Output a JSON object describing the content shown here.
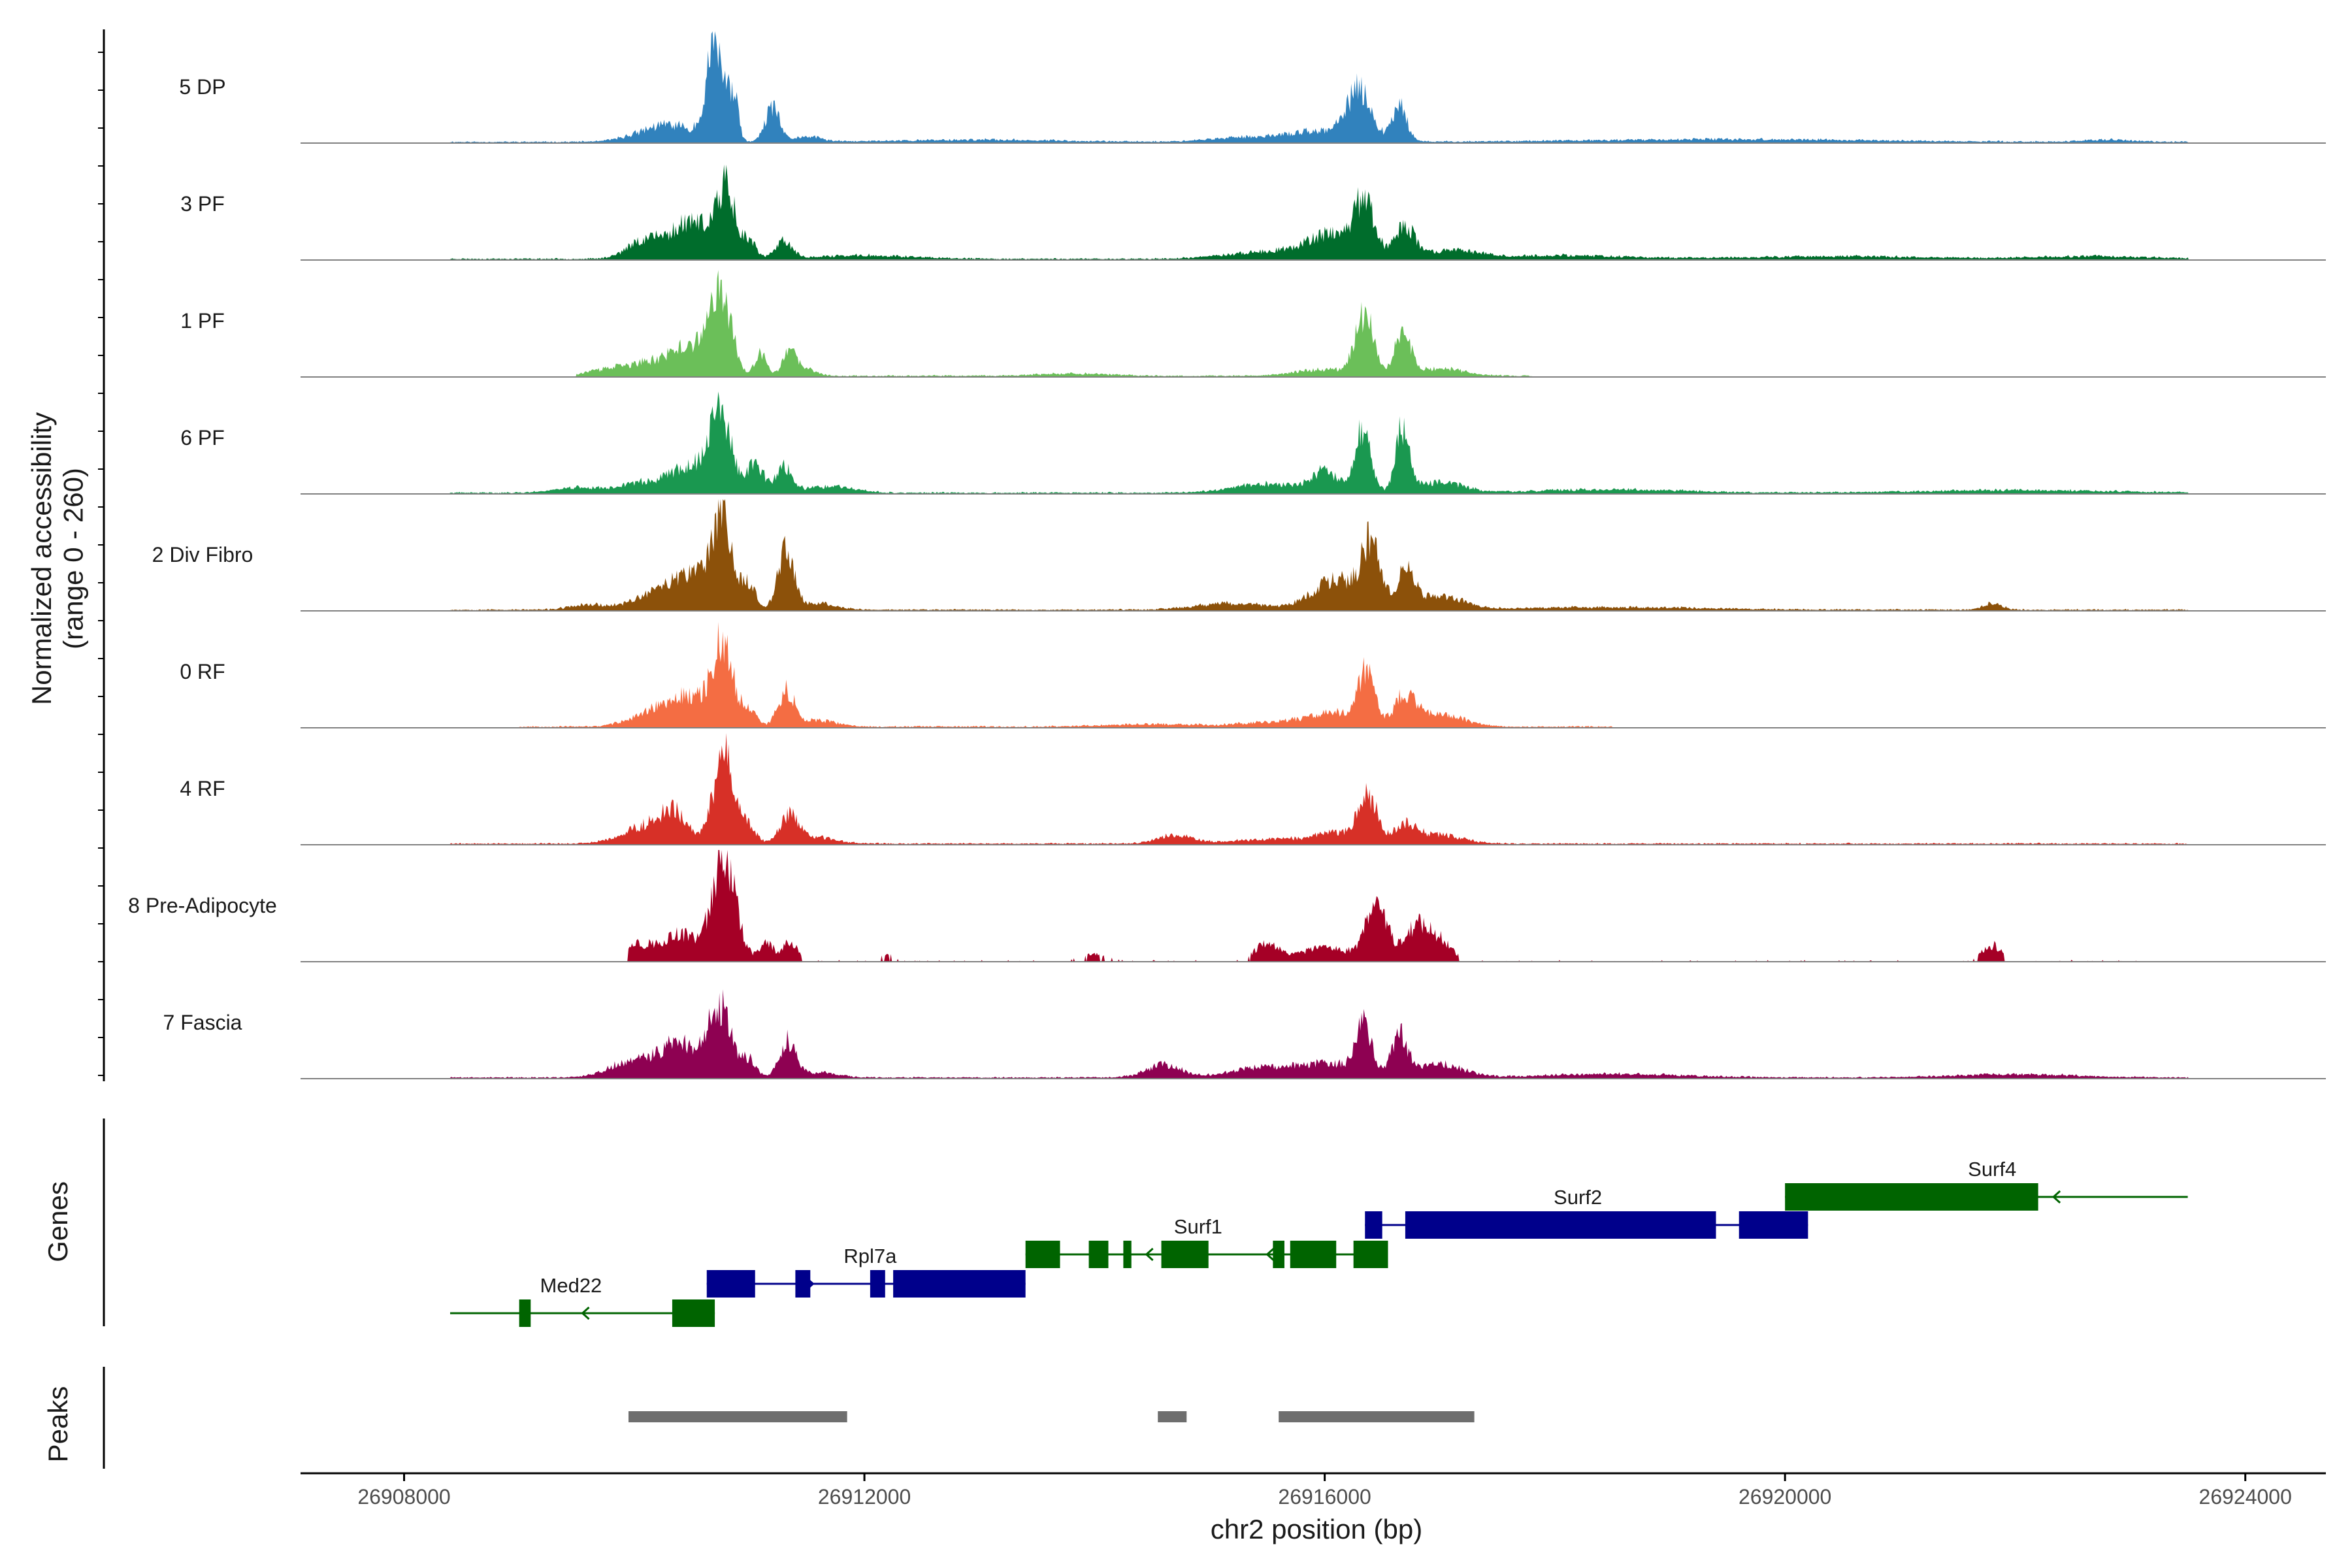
{
  "chart_data": {
    "type": "area",
    "title": "",
    "ylabel": "Normalized accessibility\n(range 0 - 260)",
    "ylim": [
      0,
      260
    ],
    "xlabel": "chr2 position (bp)",
    "xlim": [
      26907100,
      26924700
    ],
    "xticks": [
      26908000,
      26912000,
      26916000,
      26920000,
      26924000
    ],
    "xtick_labels": [
      "26908000",
      "26912000",
      "26916000",
      "26920000",
      "26924000"
    ],
    "tracks": [
      {
        "name": "5 DP",
        "color": "#3182BD",
        "peaks": [
          [
            26910300,
            40,
            250
          ],
          [
            26910700,
            230,
            70
          ],
          [
            26910860,
            110,
            40
          ],
          [
            26911200,
            80,
            60
          ],
          [
            26911500,
            12,
            120
          ],
          [
            26916300,
            110,
            100
          ],
          [
            26916650,
            90,
            60
          ],
          [
            26916000,
            25,
            300
          ],
          [
            26915300,
            10,
            300
          ],
          [
            26913000,
            5,
            700
          ],
          [
            26919500,
            6,
            1200
          ],
          [
            26922800,
            5,
            200
          ]
        ],
        "range": [
          26908400,
          26923500
        ],
        "seed": 11
      },
      {
        "name": "3 PF",
        "color": "#006D2C",
        "peaks": [
          [
            26910100,
            45,
            150
          ],
          [
            26910500,
            90,
            160
          ],
          [
            26910800,
            160,
            80
          ],
          [
            26911000,
            40,
            60
          ],
          [
            26911300,
            40,
            70
          ],
          [
            26912000,
            8,
            400
          ],
          [
            26916100,
            60,
            250
          ],
          [
            26916350,
            110,
            80
          ],
          [
            26916700,
            70,
            80
          ],
          [
            26917100,
            20,
            200
          ],
          [
            26915400,
            15,
            300
          ],
          [
            26918000,
            8,
            600
          ],
          [
            26920500,
            6,
            800
          ],
          [
            26922700,
            6,
            500
          ]
        ],
        "range": [
          26908400,
          26923500
        ],
        "seed": 23
      },
      {
        "name": "1 PF",
        "color": "#6BBF59",
        "peaks": [
          [
            26909800,
            15,
            200
          ],
          [
            26910200,
            30,
            200
          ],
          [
            26910500,
            60,
            150
          ],
          [
            26910750,
            200,
            90
          ],
          [
            26911100,
            50,
            50
          ],
          [
            26911350,
            55,
            60
          ],
          [
            26911500,
            15,
            80
          ],
          [
            26916000,
            15,
            250
          ],
          [
            26916350,
            140,
            80
          ],
          [
            26916680,
            100,
            70
          ],
          [
            26917000,
            18,
            200
          ],
          [
            26913800,
            5,
            300
          ]
        ],
        "range": [
          26909500,
          26917800
        ],
        "seed": 37
      },
      {
        "name": "6 PF",
        "color": "#1A9850",
        "peaks": [
          [
            26909500,
            12,
            200
          ],
          [
            26910100,
            25,
            200
          ],
          [
            26910500,
            60,
            160
          ],
          [
            26910750,
            180,
            90
          ],
          [
            26911050,
            70,
            70
          ],
          [
            26911300,
            60,
            70
          ],
          [
            26911700,
            15,
            200
          ],
          [
            26915500,
            20,
            300
          ],
          [
            26916000,
            45,
            120
          ],
          [
            26916330,
            150,
            70
          ],
          [
            26916680,
            150,
            60
          ],
          [
            26917000,
            25,
            200
          ],
          [
            26918500,
            8,
            600
          ],
          [
            26922000,
            6,
            800
          ]
        ],
        "range": [
          26908400,
          26923500
        ],
        "seed": 41
      },
      {
        "name": "2 Div Fibro",
        "color": "#8C510A",
        "peaks": [
          [
            26909600,
            12,
            150
          ],
          [
            26910200,
            40,
            200
          ],
          [
            26910500,
            70,
            140
          ],
          [
            26910760,
            220,
            90
          ],
          [
            26911000,
            60,
            60
          ],
          [
            26911320,
            135,
            70
          ],
          [
            26911600,
            15,
            150
          ],
          [
            26915200,
            15,
            300
          ],
          [
            26916100,
            70,
            200
          ],
          [
            26916400,
            140,
            80
          ],
          [
            26916700,
            80,
            80
          ],
          [
            26917000,
            30,
            200
          ],
          [
            26921800,
            15,
            80
          ],
          [
            26918500,
            6,
            800
          ]
        ],
        "range": [
          26908400,
          26923500
        ],
        "seed": 53
      },
      {
        "name": "0 RF",
        "color": "#F46D43",
        "peaks": [
          [
            26910200,
            40,
            200
          ],
          [
            26910500,
            60,
            140
          ],
          [
            26910770,
            195,
            90
          ],
          [
            26911000,
            40,
            60
          ],
          [
            26911320,
            85,
            70
          ],
          [
            26911600,
            15,
            150
          ],
          [
            26915600,
            12,
            300
          ],
          [
            26916100,
            30,
            200
          ],
          [
            26916360,
            125,
            70
          ],
          [
            26916700,
            70,
            90
          ],
          [
            26917000,
            30,
            200
          ],
          [
            26914500,
            6,
            400
          ]
        ],
        "range": [
          26909000,
          26918500
        ],
        "seed": 67
      },
      {
        "name": "4 RF",
        "color": "#D73027",
        "peaks": [
          [
            26910100,
            40,
            200
          ],
          [
            26910350,
            60,
            120
          ],
          [
            26910780,
            205,
            90
          ],
          [
            26911000,
            40,
            60
          ],
          [
            26911350,
            65,
            80
          ],
          [
            26911600,
            15,
            150
          ],
          [
            26914700,
            20,
            150
          ],
          [
            26915500,
            10,
            300
          ],
          [
            26916100,
            25,
            200
          ],
          [
            26916370,
            110,
            80
          ],
          [
            26916700,
            40,
            100
          ],
          [
            26917000,
            20,
            200
          ]
        ],
        "range": [
          26908400,
          26923500
        ],
        "seed": 79
      },
      {
        "name": "8 Pre-Adipocyte",
        "color": "#A50026",
        "peaks": [
          [
            26910000,
            40,
            150
          ],
          [
            26910400,
            60,
            150
          ],
          [
            26910780,
            250,
            100
          ],
          [
            26911150,
            40,
            60
          ],
          [
            26911350,
            45,
            60
          ],
          [
            26915500,
            40,
            100
          ],
          [
            26916000,
            30,
            200
          ],
          [
            26916450,
            120,
            100
          ],
          [
            26916800,
            80,
            100
          ],
          [
            26917000,
            45,
            100
          ],
          [
            26921800,
            35,
            80
          ],
          [
            26912200,
            12,
            80
          ],
          [
            26914000,
            15,
            100
          ]
        ],
        "range": [
          26909950,
          26923500
        ],
        "seed": 97,
        "sparse": true
      },
      {
        "name": "7 Fascia",
        "color": "#8E0152",
        "peaks": [
          [
            26910000,
            40,
            200
          ],
          [
            26910400,
            75,
            160
          ],
          [
            26910740,
            160,
            100
          ],
          [
            26911000,
            40,
            60
          ],
          [
            26911330,
            85,
            70
          ],
          [
            26911600,
            12,
            150
          ],
          [
            26914600,
            30,
            150
          ],
          [
            26915500,
            25,
            300
          ],
          [
            26916050,
            30,
            200
          ],
          [
            26916340,
            115,
            70
          ],
          [
            26916650,
            95,
            70
          ],
          [
            26917000,
            30,
            200
          ],
          [
            26918500,
            8,
            600
          ],
          [
            26922000,
            8,
            500
          ]
        ],
        "range": [
          26908400,
          26923500
        ],
        "seed": 89
      }
    ],
    "genes_track_label": "Genes",
    "genes": [
      {
        "name": "Med22",
        "strand": "-",
        "start": 26908400,
        "end": 26910700,
        "row": 2,
        "color": "#006400",
        "exons": [
          [
            26909000,
            26909100
          ],
          [
            26910330,
            26910700
          ]
        ],
        "label_x": 26909450
      },
      {
        "name": "Rpl7a",
        "strand": "+",
        "start": 26910630,
        "end": 26913400,
        "row": 1,
        "color": "#00008B",
        "exons": [
          [
            26910630,
            26911050
          ],
          [
            26911400,
            26911530
          ],
          [
            26912050,
            26912180
          ],
          [
            26912250,
            26913400
          ]
        ],
        "label_x": 26912050
      },
      {
        "name": "Surf1",
        "strand": "-",
        "start": 26913400,
        "end": 26916550,
        "row": 0,
        "color": "#006400",
        "exons": [
          [
            26913400,
            26913700
          ],
          [
            26913950,
            26914120
          ],
          [
            26914250,
            26914320
          ],
          [
            26914580,
            26914990
          ],
          [
            26915550,
            26915650
          ],
          [
            26915700,
            26916100
          ],
          [
            26916250,
            26916550
          ]
        ],
        "label_x": 26914900
      },
      {
        "name": "Surf2",
        "strand": "+",
        "start": 26916350,
        "end": 26920200,
        "row": -1,
        "color": "#00008B",
        "exons": [
          [
            26916350,
            26916500
          ],
          [
            26916700,
            26919400
          ],
          [
            26919600,
            26920200
          ]
        ],
        "label_x": 26918200
      },
      {
        "name": "Surf4",
        "strand": "-",
        "start": 26920000,
        "end": 26923500,
        "row": -2,
        "color": "#006400",
        "exons": [
          [
            26920000,
            26922200
          ]
        ],
        "label_x": 26921800
      }
    ],
    "peaks_track_label": "Peaks",
    "peak_regions": [
      [
        26909950,
        26911850
      ],
      [
        26914550,
        26914800
      ],
      [
        26915600,
        26917300
      ]
    ]
  }
}
